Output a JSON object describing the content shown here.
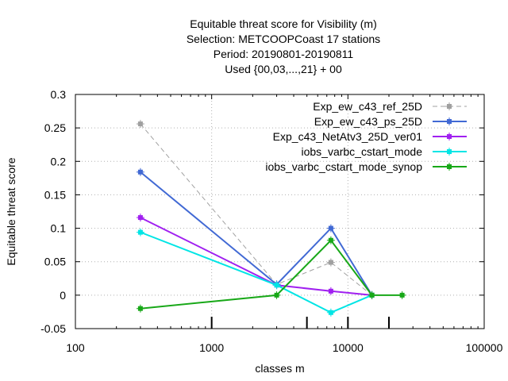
{
  "chart_data": {
    "type": "line",
    "title": [
      "Equitable threat score  for Visibility (m)",
      "Selection: METCOOPCoast     17 stations",
      "Period: 20190801-20190811",
      "Used {00,03,...,21} + 00"
    ],
    "xlabel": "classes m",
    "ylabel": "Equitable threat score",
    "x_scale": "log",
    "xlim": [
      100,
      100000
    ],
    "ylim": [
      -0.05,
      0.3
    ],
    "x_ticks": [
      100,
      1000,
      10000,
      100000
    ],
    "x_tick_labels": [
      "100",
      "1000",
      "10000",
      "100000"
    ],
    "y_ticks": [
      -0.05,
      0,
      0.05,
      0.1,
      0.15,
      0.2,
      0.25,
      0.3
    ],
    "y_tick_labels": [
      "-0.05",
      "0",
      "0.05",
      "0.1",
      "0.15",
      "0.2",
      "0.25",
      "0.3"
    ],
    "class_marks": [
      1000,
      5000,
      10000,
      20000
    ],
    "grid": true,
    "legend_position": "top-right",
    "series": [
      {
        "name": "Exp_ew_c43_ref_25D",
        "color": "#a0a0a0",
        "dashed": true,
        "x": [
          300,
          3000,
          7500,
          15000
        ],
        "y": [
          0.256,
          0.016,
          0.049,
          0.0
        ]
      },
      {
        "name": "Exp_ew_c43_ps_25D",
        "color": "#4169d4",
        "dashed": false,
        "x": [
          300,
          3000,
          7500,
          15000
        ],
        "y": [
          0.184,
          0.016,
          0.1,
          0.0
        ]
      },
      {
        "name": "Exp_c43_NetAtv3_25D_ver01",
        "color": "#a020f0",
        "dashed": false,
        "x": [
          300,
          3000,
          7500,
          15000
        ],
        "y": [
          0.116,
          0.015,
          0.006,
          0.0
        ]
      },
      {
        "name": "iobs_varbc_cstart_mode",
        "color": "#00e5e5",
        "dashed": false,
        "x": [
          300,
          3000,
          7500,
          15000
        ],
        "y": [
          0.094,
          0.015,
          -0.026,
          0.0
        ]
      },
      {
        "name": "iobs_varbc_cstart_mode_synop",
        "color": "#18a818",
        "dashed": false,
        "x": [
          300,
          3000,
          7500,
          15000,
          25000
        ],
        "y": [
          -0.02,
          0.0,
          0.082,
          0.0,
          0.0
        ]
      }
    ]
  }
}
